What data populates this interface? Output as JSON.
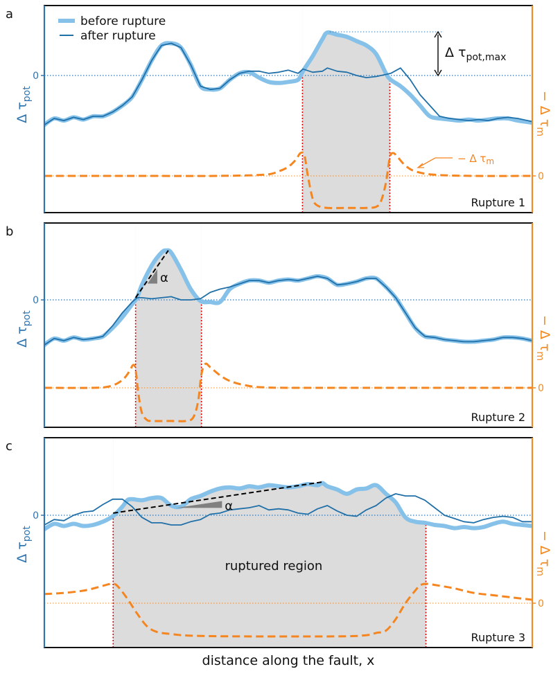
{
  "figure": {
    "xlabel": "distance along the fault, x",
    "legend": {
      "before_label": "before rupture",
      "after_label": "after rupture",
      "placement": "top-left"
    },
    "colors": {
      "before": "#85c1e9",
      "after": "#1f6fa8",
      "axis_left": "#2e75b0",
      "axis_right": "#f08a24",
      "mu": "#f5851f",
      "rupture_edge": "#e00000",
      "shade": "#dcdcdc",
      "slope": "#000000",
      "wedge": "#808080"
    }
  },
  "chart_data": [
    {
      "type": "line",
      "panel_letter": "a",
      "title": "Rupture 1",
      "ylabel_left": "Δ τ_pot",
      "ylabel_left_main": "Δ τ",
      "ylabel_left_sub": "pot",
      "ylabel_right": "− Δ τ_m",
      "ylabel_right_main": "− Δ τ",
      "ylabel_right_sub": "m",
      "left_zero_label": "0",
      "right_zero_label": "0",
      "xlim": [
        0,
        100
      ],
      "tau_ylim": [
        -3.2,
        2.6
      ],
      "mu_ylim": [
        -1.6,
        3.2
      ],
      "rupture_region": [
        52.9,
        70.8
      ],
      "annotation": {
        "label_main": "Δ τ",
        "label_sub": "pot,max",
        "from_y": 0,
        "to_y": 2.0
      },
      "mu_annotation": {
        "label_main": "− Δ τ",
        "label_sub": "m",
        "pointer_x": 77.5
      },
      "series": [
        {
          "name": "before rupture",
          "x": [
            0,
            2,
            4,
            6,
            8,
            10,
            12,
            14,
            16,
            18,
            20,
            22,
            24,
            26,
            28,
            30,
            32,
            34,
            36,
            38,
            40,
            42,
            44,
            46,
            48,
            50,
            52,
            53,
            55,
            57,
            58,
            60,
            62,
            64,
            66,
            68,
            70,
            71,
            73,
            75,
            77,
            79,
            81,
            83,
            85,
            87,
            89,
            91,
            93,
            95,
            97,
            100
          ],
          "y": [
            -2.3,
            -2.0,
            -2.1,
            -1.95,
            -2.05,
            -1.9,
            -1.9,
            -1.7,
            -1.4,
            -1.0,
            -0.2,
            0.7,
            1.4,
            1.5,
            1.3,
            0.5,
            -0.5,
            -0.65,
            -0.6,
            -0.2,
            0.1,
            0.15,
            -0.1,
            -0.3,
            -0.35,
            -0.3,
            -0.2,
            0.2,
            0.9,
            1.7,
            2.0,
            1.9,
            1.8,
            1.6,
            1.4,
            1.0,
            0.1,
            -0.2,
            -0.5,
            -0.9,
            -1.4,
            -1.9,
            -2.0,
            -2.05,
            -2.1,
            -2.05,
            -2.1,
            -2.05,
            -2.0,
            -2.0,
            -2.1,
            -2.2
          ]
        },
        {
          "name": "after rupture",
          "x": [
            0,
            2,
            4,
            6,
            8,
            10,
            12,
            14,
            16,
            18,
            20,
            22,
            24,
            26,
            28,
            30,
            32,
            34,
            36,
            38,
            40,
            42,
            44,
            46,
            48,
            50,
            52,
            53,
            55,
            57,
            58,
            60,
            62,
            64,
            66,
            68,
            70,
            71,
            73,
            75,
            77,
            79,
            81,
            83,
            85,
            87,
            89,
            91,
            93,
            95,
            97,
            100
          ],
          "y": [
            -2.3,
            -2.0,
            -2.1,
            -1.95,
            -2.05,
            -1.9,
            -1.9,
            -1.7,
            -1.4,
            -1.0,
            -0.2,
            0.7,
            1.4,
            1.5,
            1.3,
            0.5,
            -0.5,
            -0.65,
            -0.6,
            -0.2,
            0.1,
            0.2,
            0.2,
            0.1,
            0.15,
            0.25,
            0.1,
            0.3,
            0.15,
            0.2,
            0.35,
            0.2,
            0.15,
            0.0,
            -0.1,
            -0.05,
            0.05,
            0.1,
            0.35,
            -0.2,
            -0.9,
            -1.4,
            -1.9,
            -2.0,
            -2.05,
            -2.1,
            -2.05,
            -2.1,
            -2.0,
            -1.95,
            -2.0,
            -2.15
          ]
        },
        {
          "name": "− Δ τ_m",
          "x": [
            0,
            20,
            35,
            45,
            48,
            50,
            51.5,
            52.5,
            53.3,
            54,
            55,
            56,
            58,
            62,
            66,
            68,
            69,
            70,
            70.8,
            71.5,
            72.5,
            74,
            76,
            80,
            88,
            100
          ],
          "y": [
            0,
            0,
            0,
            0.05,
            0.2,
            0.4,
            0.7,
            1.0,
            0.9,
            0.0,
            -1.0,
            -1.3,
            -1.4,
            -1.4,
            -1.4,
            -1.35,
            -1.1,
            -0.3,
            0.8,
            1.0,
            0.8,
            0.45,
            0.2,
            0.05,
            0,
            0
          ]
        }
      ]
    },
    {
      "type": "line",
      "panel_letter": "b",
      "title": "Rupture 2",
      "ylabel_left": "Δ τ_pot",
      "ylabel_left_main": "Δ τ",
      "ylabel_left_sub": "pot",
      "ylabel_right": "− Δ τ_m",
      "ylabel_right_main": "− Δ τ",
      "ylabel_right_sub": "m",
      "left_zero_label": "0",
      "right_zero_label": "0",
      "xlim": [
        0,
        100
      ],
      "tau_ylim": [
        -3.2,
        2.6
      ],
      "mu_ylim": [
        -1.6,
        3.2
      ],
      "rupture_region": [
        18.7,
        32.2
      ],
      "slope_line": {
        "x": [
          18.7,
          25.4
        ],
        "y": [
          0.1,
          2.3
        ],
        "label": "α"
      },
      "series": [
        {
          "name": "before rupture",
          "x": [
            0,
            2,
            4,
            6,
            8,
            10,
            12,
            14,
            16,
            18,
            19,
            20,
            22,
            24,
            25,
            26,
            28,
            30,
            32,
            34,
            36,
            38,
            40,
            42,
            44,
            46,
            48,
            50,
            52,
            54,
            56,
            58,
            60,
            62,
            64,
            66,
            68,
            70,
            72,
            74,
            76,
            78,
            80,
            82,
            84,
            86,
            88,
            90,
            92,
            94,
            96,
            98,
            100
          ],
          "y": [
            -2.1,
            -1.8,
            -1.9,
            -1.75,
            -1.85,
            -1.8,
            -1.7,
            -1.3,
            -0.8,
            -0.2,
            0.1,
            0.7,
            1.6,
            2.2,
            2.3,
            2.2,
            1.4,
            0.5,
            -0.05,
            -0.1,
            -0.1,
            0.5,
            0.75,
            0.9,
            0.9,
            0.8,
            0.9,
            0.95,
            0.9,
            1.0,
            1.1,
            1.0,
            0.7,
            0.75,
            0.85,
            1.0,
            1.0,
            0.6,
            0.1,
            -0.6,
            -1.3,
            -1.7,
            -1.75,
            -1.85,
            -1.9,
            -1.95,
            -1.95,
            -1.9,
            -1.85,
            -1.75,
            -1.75,
            -1.8,
            -1.9
          ]
        },
        {
          "name": "after rupture",
          "x": [
            0,
            2,
            4,
            6,
            8,
            10,
            12,
            14,
            16,
            18,
            19,
            20,
            22,
            24,
            26,
            28,
            30,
            32,
            34,
            36,
            38,
            40,
            42,
            44,
            46,
            48,
            50,
            52,
            54,
            56,
            58,
            60,
            62,
            64,
            66,
            68,
            70,
            72,
            74,
            76,
            78,
            80,
            82,
            84,
            86,
            88,
            90,
            92,
            94,
            96,
            98,
            100
          ],
          "y": [
            -2.1,
            -1.8,
            -1.9,
            -1.75,
            -1.85,
            -1.8,
            -1.7,
            -1.2,
            -0.6,
            -0.1,
            0.1,
            0.1,
            0.05,
            0.1,
            0.15,
            0.0,
            0.0,
            0.05,
            0.35,
            0.5,
            0.6,
            0.75,
            0.9,
            0.9,
            0.8,
            0.9,
            0.95,
            0.9,
            1.0,
            1.1,
            1.0,
            0.7,
            0.75,
            0.85,
            1.0,
            1.0,
            0.6,
            0.1,
            -0.6,
            -1.3,
            -1.7,
            -1.75,
            -1.85,
            -1.9,
            -1.95,
            -1.95,
            -1.9,
            -1.85,
            -1.75,
            -1.75,
            -1.8,
            -1.9
          ]
        },
        {
          "name": "− Δ τ_m",
          "x": [
            0,
            10,
            13,
            15,
            16.5,
            17.5,
            18.2,
            18.7,
            19.3,
            20,
            21,
            22,
            26,
            29,
            30.5,
            31.5,
            32.2,
            33,
            34,
            36,
            38,
            41,
            45,
            55,
            100
          ],
          "y": [
            0,
            0,
            0.05,
            0.2,
            0.45,
            0.75,
            1.0,
            0.8,
            -0.3,
            -1.1,
            -1.4,
            -1.45,
            -1.45,
            -1.45,
            -1.3,
            -0.6,
            0.6,
            1.05,
            0.9,
            0.55,
            0.3,
            0.12,
            0.02,
            0,
            0
          ]
        }
      ]
    },
    {
      "type": "line",
      "panel_letter": "c",
      "title": "Rupture 3",
      "ylabel_left": "Δ τ_pot",
      "ylabel_left_main": "Δ τ",
      "ylabel_left_sub": "pot",
      "ylabel_right": "− Δ τ_m",
      "ylabel_right_main": "− Δ τ",
      "ylabel_right_sub": "m",
      "left_zero_label": "0",
      "right_zero_label": "0",
      "xlim": [
        0,
        100
      ],
      "tau_ylim": [
        -3.2,
        2.6
      ],
      "mu_ylim": [
        -1.6,
        3.2
      ],
      "rupture_region": [
        14.1,
        78.2
      ],
      "slope_line": {
        "x": [
          14.1,
          57.0
        ],
        "y": [
          0.1,
          1.55
        ],
        "label": "α"
      },
      "region_label": "ruptured region",
      "series": [
        {
          "name": "before rupture",
          "x": [
            0,
            2,
            4,
            6,
            8,
            10,
            12,
            14,
            16,
            17,
            18,
            20,
            22,
            24,
            26,
            28,
            30,
            32,
            34,
            36,
            38,
            40,
            42,
            44,
            46,
            48,
            50,
            52,
            54,
            56,
            57,
            58,
            60,
            62,
            64,
            66,
            68,
            70,
            72,
            74,
            76,
            78,
            80,
            82,
            84,
            86,
            88,
            90,
            92,
            94,
            96,
            98,
            100
          ],
          "y": [
            -0.65,
            -0.4,
            -0.5,
            -0.4,
            -0.5,
            -0.45,
            -0.3,
            -0.05,
            0.4,
            0.7,
            0.75,
            0.7,
            0.8,
            0.8,
            0.45,
            0.4,
            0.75,
            0.9,
            1.1,
            1.25,
            1.3,
            1.25,
            1.35,
            1.3,
            1.4,
            1.35,
            1.3,
            1.35,
            1.45,
            1.4,
            1.5,
            1.35,
            1.2,
            1.0,
            1.2,
            1.25,
            1.4,
            1.0,
            0.6,
            -0.1,
            -0.3,
            -0.35,
            -0.45,
            -0.5,
            -0.6,
            -0.55,
            -0.6,
            -0.55,
            -0.4,
            -0.3,
            -0.4,
            -0.45,
            -0.5
          ]
        },
        {
          "name": "after rupture",
          "x": [
            0,
            2,
            4,
            6,
            8,
            10,
            12,
            14,
            16,
            18,
            20,
            22,
            24,
            26,
            28,
            30,
            32,
            34,
            36,
            38,
            40,
            42,
            44,
            46,
            48,
            50,
            52,
            54,
            56,
            58,
            60,
            62,
            64,
            66,
            68,
            70,
            72,
            74,
            76,
            78,
            80,
            82,
            84,
            86,
            88,
            90,
            92,
            94,
            96,
            98,
            100
          ],
          "y": [
            -0.45,
            -0.2,
            -0.25,
            0.0,
            0.15,
            0.2,
            0.5,
            0.75,
            0.75,
            0.4,
            -0.1,
            -0.35,
            -0.35,
            -0.45,
            -0.45,
            -0.3,
            -0.2,
            0.05,
            0.1,
            0.25,
            0.3,
            0.35,
            0.45,
            0.25,
            0.3,
            0.25,
            0.1,
            0.05,
            0.3,
            0.45,
            0.2,
            0.0,
            -0.05,
            0.25,
            0.45,
            0.8,
            1.0,
            0.9,
            0.9,
            0.7,
            0.35,
            0.0,
            -0.15,
            -0.3,
            -0.35,
            -0.2,
            -0.1,
            -0.05,
            -0.1,
            -0.3,
            -0.3
          ]
        },
        {
          "name": "− Δ τ_m",
          "x": [
            0,
            4,
            8,
            11,
            13,
            14.1,
            15,
            17,
            19,
            21,
            23,
            26,
            30,
            40,
            60,
            66,
            68,
            70,
            72,
            74,
            76,
            77,
            78.2,
            80,
            84,
            88,
            92,
            96,
            100
          ],
          "y": [
            0.4,
            0.45,
            0.55,
            0.7,
            0.82,
            0.85,
            0.75,
            0.2,
            -0.45,
            -1.0,
            -1.25,
            -1.35,
            -1.42,
            -1.45,
            -1.45,
            -1.4,
            -1.3,
            -1.2,
            -0.7,
            0.0,
            0.55,
            0.78,
            0.85,
            0.8,
            0.65,
            0.45,
            0.35,
            0.25,
            0.15
          ]
        }
      ]
    }
  ]
}
